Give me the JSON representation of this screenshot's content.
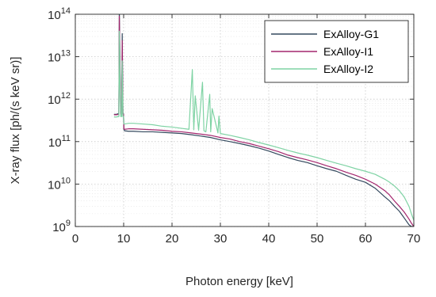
{
  "chart_data": {
    "type": "line",
    "title": "",
    "xlabel": "Photon energy [keV]",
    "ylabel": "X-ray flux [ph/(s keV sr)]",
    "xlim": [
      0,
      70
    ],
    "ylim": [
      1000000000.0,
      100000000000000.0
    ],
    "yscale": "log",
    "grid": true,
    "minor_grid": true,
    "legend_position": "top-right",
    "x_ticks": [
      0,
      10,
      20,
      30,
      40,
      50,
      60,
      70
    ],
    "x_tick_labels": [
      "0",
      "10",
      "20",
      "30",
      "40",
      "50",
      "60",
      "70"
    ],
    "y_ticks": [
      1000000000.0,
      10000000000.0,
      100000000000.0,
      1000000000000.0,
      10000000000000.0,
      100000000000000.0
    ],
    "y_tick_labels": [
      {
        "base": "10",
        "exp": "9"
      },
      {
        "base": "10",
        "exp": "10"
      },
      {
        "base": "10",
        "exp": "11"
      },
      {
        "base": "10",
        "exp": "12"
      },
      {
        "base": "10",
        "exp": "13"
      },
      {
        "base": "10",
        "exp": "14"
      }
    ],
    "series": [
      {
        "name": "ExAlloy-G1",
        "color": "#34495e",
        "x": [
          8.0,
          8.5,
          9.0,
          9.1,
          9.25,
          9.4,
          9.6,
          9.7,
          9.85,
          9.97,
          10.05,
          10.2,
          11,
          12,
          14,
          16,
          18,
          20,
          22,
          24,
          26,
          28,
          30,
          32,
          34,
          36,
          38,
          40,
          42,
          44,
          46,
          48,
          50,
          52,
          54,
          56,
          58,
          60,
          62,
          64,
          65,
          66,
          67,
          68,
          69,
          69.5,
          70
        ],
        "y": [
          440000000000.0,
          440000000000.0,
          460000000000.0,
          120000000000000.0,
          6000000000000.0,
          450000000000.0,
          450000000000.0,
          35000000000000.0,
          450000000000.0,
          450000000000.0,
          190000000000.0,
          180000000000.0,
          175000000000.0,
          175000000000.0,
          170000000000.0,
          170000000000.0,
          165000000000.0,
          160000000000.0,
          155000000000.0,
          145000000000.0,
          135000000000.0,
          125000000000.0,
          110000000000.0,
          100000000000.0,
          90000000000.0,
          80000000000.0,
          70000000000.0,
          60000000000.0,
          50000000000.0,
          42000000000.0,
          36000000000.0,
          32000000000.0,
          27000000000.0,
          23000000000.0,
          20000000000.0,
          16000000000.0,
          13000000000.0,
          11000000000.0,
          8000000000.0,
          5000000000.0,
          4000000000.0,
          3000000000.0,
          2300000000.0,
          1600000000.0,
          1100000000.0,
          1000000000.0,
          1000000000.0
        ]
      },
      {
        "name": "ExAlloy-I1",
        "color": "#a4266e",
        "x": [
          8.0,
          8.5,
          9.0,
          9.1,
          9.25,
          9.4,
          9.6,
          9.7,
          9.85,
          9.97,
          10.05,
          10.2,
          11,
          12,
          14,
          16,
          18,
          20,
          22,
          24,
          26,
          28,
          30,
          32,
          34,
          36,
          38,
          40,
          42,
          44,
          46,
          48,
          50,
          52,
          54,
          56,
          58,
          60,
          62,
          64,
          65,
          66,
          67,
          68,
          69,
          69.5,
          70
        ],
        "y": [
          430000000000.0,
          430000000000.0,
          440000000000.0,
          90000000000000.0,
          4000000000000.0,
          440000000000.0,
          440000000000.0,
          24000000000000.0,
          440000000000.0,
          440000000000.0,
          200000000000.0,
          195000000000.0,
          200000000000.0,
          200000000000.0,
          195000000000.0,
          190000000000.0,
          185000000000.0,
          175000000000.0,
          170000000000.0,
          160000000000.0,
          150000000000.0,
          140000000000.0,
          125000000000.0,
          115000000000.0,
          100000000000.0,
          90000000000.0,
          78000000000.0,
          68000000000.0,
          58000000000.0,
          48000000000.0,
          42000000000.0,
          37000000000.0,
          32000000000.0,
          27000000000.0,
          23000000000.0,
          19000000000.0,
          16000000000.0,
          13000000000.0,
          10000000000.0,
          7000000000.0,
          5500000000.0,
          4000000000.0,
          3000000000.0,
          2200000000.0,
          1500000000.0,
          1200000000.0,
          1000000000.0
        ]
      },
      {
        "name": "ExAlloy-I2",
        "color": "#7fd3a4",
        "x": [
          8.0,
          8.5,
          9.0,
          9.1,
          9.25,
          9.4,
          9.6,
          9.7,
          9.85,
          9.97,
          10.05,
          10.2,
          11,
          12,
          14,
          16,
          18,
          20,
          22,
          23.5,
          24.2,
          24.5,
          24.8,
          25.5,
          26.3,
          26.6,
          27,
          27.8,
          28,
          28.3,
          29.5,
          29.7,
          30,
          32,
          34,
          36,
          38,
          40,
          42,
          44,
          46,
          48,
          50,
          52,
          54,
          56,
          58,
          60,
          62,
          64,
          65,
          66,
          67,
          68,
          69,
          69.5,
          70
        ],
        "y": [
          380000000000.0,
          380000000000.0,
          390000000000.0,
          40000000000000.0,
          2000000000000.0,
          390000000000.0,
          390000000000.0,
          8000000000000.0,
          390000000000.0,
          390000000000.0,
          260000000000.0,
          260000000000.0,
          270000000000.0,
          270000000000.0,
          260000000000.0,
          250000000000.0,
          230000000000.0,
          220000000000.0,
          205000000000.0,
          195000000000.0,
          5000000000000.0,
          190000000000.0,
          1200000000000.0,
          185000000000.0,
          2500000000000.0,
          180000000000.0,
          170000000000.0,
          1300000000000.0,
          170000000000.0,
          600000000000.0,
          160000000000.0,
          400000000000.0,
          155000000000.0,
          140000000000.0,
          125000000000.0,
          110000000000.0,
          95000000000.0,
          83000000000.0,
          72000000000.0,
          62000000000.0,
          54000000000.0,
          48000000000.0,
          42000000000.0,
          36000000000.0,
          31000000000.0,
          27000000000.0,
          23000000000.0,
          20000000000.0,
          17000000000.0,
          13000000000.0,
          11000000000.0,
          9000000000.0,
          7000000000.0,
          5000000000.0,
          3000000000.0,
          2000000000.0,
          1400000000.0
        ]
      }
    ]
  }
}
